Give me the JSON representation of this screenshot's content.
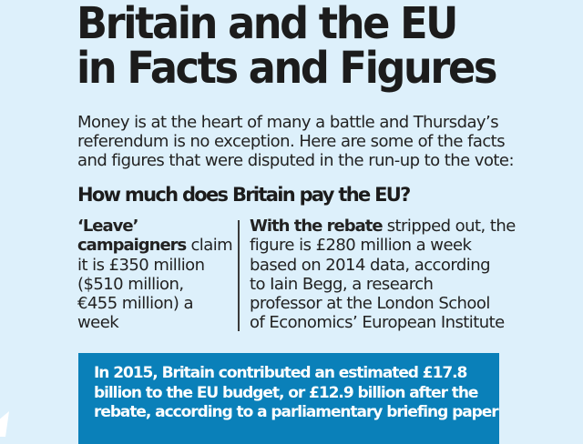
{
  "article": {
    "title_lines": [
      "Britain and the EU",
      "in Facts and Figures"
    ],
    "intro_lines": [
      "Money is at the heart of many a battle and Thursday’s",
      "referendum is no exception. Here are some of the facts",
      "and figures that were disputed in the run-up to the vote:"
    ],
    "subheading": "How much does Britain pay the EU?",
    "left_column": {
      "bold_lead_1": "‘Leave’",
      "bold_lead_2": "campaigners",
      "line2_rest": " claim",
      "lines": [
        "it is £350 million",
        "($510 million,",
        "€455 million) a",
        "week"
      ]
    },
    "right_column": {
      "bold_lead": "With the rebate",
      "line1_rest": " stripped out, the",
      "lines": [
        "figure is £280 million a week",
        "based on 2014 data, according",
        "to Iain Begg, a research",
        "professor at the London School",
        "of Economics’ European Institute"
      ]
    },
    "fact_box": {
      "lines": [
        "In 2015, Britain contributed an estimated £17.8",
        "billion to the EU budget, or £12.9 billion after the",
        "rebate, according to a parliamentary briefing paper"
      ]
    }
  },
  "colors": {
    "background": "#ddf0fb",
    "fact_box": "#0a80b9",
    "text": "#1e1e1e",
    "fact_text": "#ffffff"
  }
}
